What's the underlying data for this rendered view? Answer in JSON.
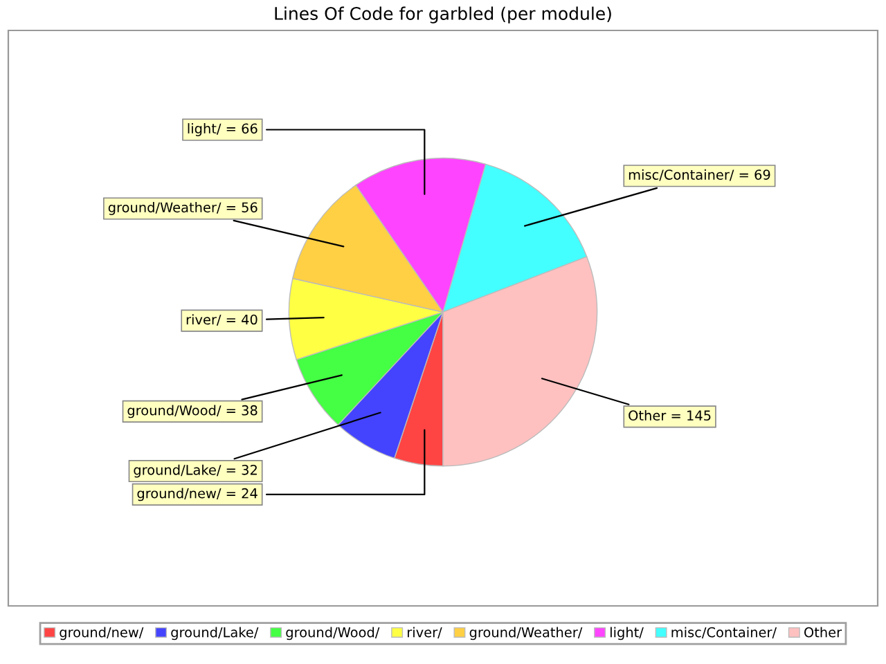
{
  "chart_data": {
    "type": "pie",
    "title": "Lines Of Code for garbled (per module)",
    "categories": [
      "ground/new/",
      "ground/Lake/",
      "ground/Wood/",
      "river/",
      "ground/Weather/",
      "light/",
      "misc/Container/",
      "Other"
    ],
    "values": [
      24,
      32,
      38,
      40,
      56,
      66,
      69,
      145
    ],
    "colors": [
      "#ff4444",
      "#4444ff",
      "#44ff44",
      "#ffff44",
      "#ffd044",
      "#ff44ff",
      "#44ffff",
      "#ffc0c0"
    ],
    "value_labels": [
      "ground/new/ = 24",
      "ground/Lake/ = 32",
      "ground/Wood/ = 38",
      "river/ = 40",
      "ground/Weather/ = 56",
      "light/ = 66",
      "misc/Container/ = 69",
      "Other = 145"
    ],
    "legend": "bottom"
  }
}
